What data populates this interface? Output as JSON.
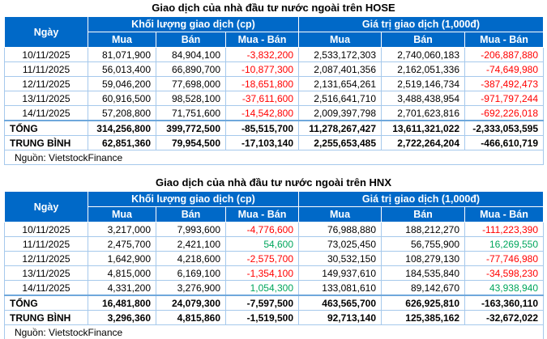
{
  "colors": {
    "header_bg": "#0069C8",
    "header_text": "#FFFFFF",
    "grid": "#A6C9EC",
    "grid_strong": "#6FA8DC",
    "negative": "#FF0000",
    "positive": "#00A65C",
    "text": "#000000",
    "page_bg": "#FFFFFF"
  },
  "chart_data": [
    {
      "type": "table",
      "title": "Giao dịch của nhà đầu tư nước ngoài trên HOSE",
      "group_headers": {
        "volume": "Khối lượng giao dịch (cp)",
        "value": "Giá trị giao dịch (1,000đ)"
      },
      "columns": [
        "Ngày",
        "Mua",
        "Bán",
        "Mua - Bán",
        "Mua",
        "Bán",
        "Mua - Bán"
      ],
      "rows": [
        [
          "10/11/2025",
          "81,071,900",
          "84,904,100",
          "-3,832,200",
          "2,533,172,303",
          "2,740,060,183",
          "-206,887,880"
        ],
        [
          "11/11/2025",
          "56,013,400",
          "66,890,700",
          "-10,877,300",
          "2,087,401,356",
          "2,162,051,336",
          "-74,649,980"
        ],
        [
          "12/11/2025",
          "59,046,200",
          "77,698,000",
          "-18,651,800",
          "2,131,654,261",
          "2,519,146,734",
          "-387,492,473"
        ],
        [
          "13/11/2025",
          "60,916,500",
          "98,528,100",
          "-37,611,600",
          "2,516,641,710",
          "3,488,438,954",
          "-971,797,244"
        ],
        [
          "14/11/2025",
          "57,208,800",
          "71,751,600",
          "-14,542,800",
          "2,009,397,798",
          "2,701,623,816",
          "-692,226,018"
        ]
      ],
      "total_row": [
        "TỔNG",
        "314,256,800",
        "399,772,500",
        "-85,515,700",
        "11,278,267,427",
        "13,611,321,022",
        "-2,333,053,595"
      ],
      "average_row": [
        "TRUNG BÌNH",
        "62,851,360",
        "79,954,500",
        "-17,103,140",
        "2,255,653,485",
        "2,722,264,204",
        "-466,610,719"
      ],
      "source": "Nguồn: VietstockFinance"
    },
    {
      "type": "table",
      "title": "Giao dịch của nhà đầu tư nước ngoài trên HNX",
      "group_headers": {
        "volume": "Khối lượng giao dịch (cp)",
        "value": "Giá trị giao dịch (1,000đ)"
      },
      "columns": [
        "Ngày",
        "Mua",
        "Bán",
        "Mua - Bán",
        "Mua",
        "Bán",
        "Mua - Bán"
      ],
      "rows": [
        [
          "10/11/2025",
          "3,217,000",
          "7,993,600",
          "-4,776,600",
          "76,988,880",
          "188,212,270",
          "-111,223,390"
        ],
        [
          "11/11/2025",
          "2,475,700",
          "2,421,100",
          "54,600",
          "73,025,450",
          "56,755,900",
          "16,269,550"
        ],
        [
          "12/11/2025",
          "1,642,900",
          "4,218,600",
          "-2,575,700",
          "30,532,150",
          "108,279,130",
          "-77,746,980"
        ],
        [
          "13/11/2025",
          "4,815,000",
          "6,169,100",
          "-1,354,100",
          "149,937,610",
          "184,535,840",
          "-34,598,230"
        ],
        [
          "14/11/2025",
          "4,331,200",
          "3,276,900",
          "1,054,300",
          "133,081,610",
          "89,142,670",
          "43,938,940"
        ]
      ],
      "total_row": [
        "TỔNG",
        "16,481,800",
        "24,079,300",
        "-7,597,500",
        "463,565,700",
        "626,925,810",
        "-163,360,110"
      ],
      "average_row": [
        "TRUNG BÌNH",
        "3,296,360",
        "4,815,860",
        "-1,519,500",
        "92,713,140",
        "125,385,162",
        "-32,672,022"
      ],
      "source": "Nguồn: VietstockFinance"
    }
  ]
}
